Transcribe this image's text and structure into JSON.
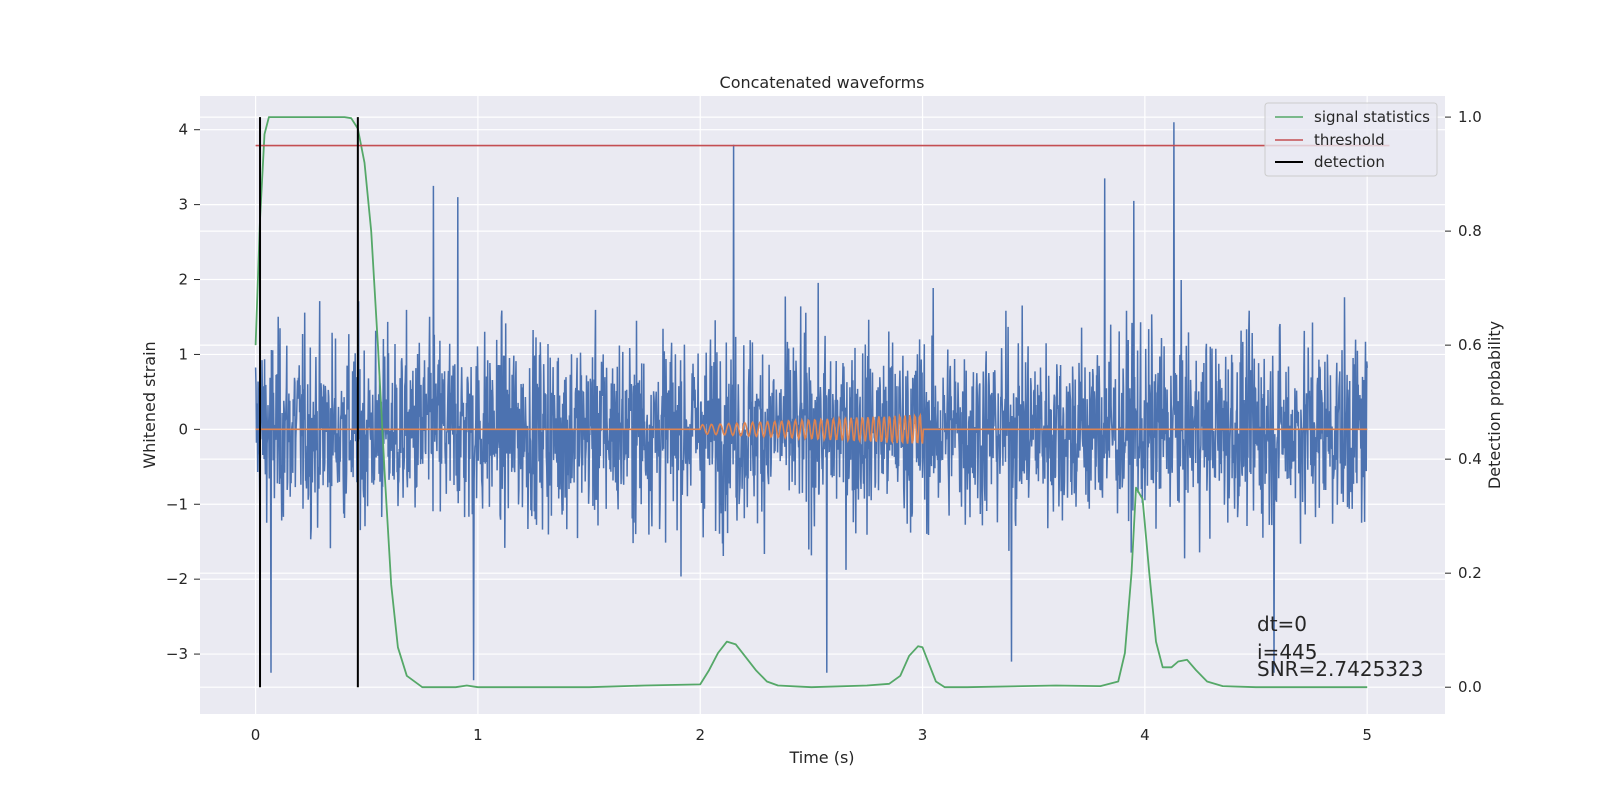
{
  "chart_data": {
    "type": "line",
    "title": "Concatenated waveforms",
    "xlabel": "Time (s)",
    "ylabel_left": "Whitened strain",
    "ylabel_right": "Detection probability",
    "xlim": [
      -0.25,
      5.35
    ],
    "ylim_left": [
      -3.8,
      4.45
    ],
    "ylim_right": [
      -0.047,
      1.037
    ],
    "x_ticks": [
      0,
      1,
      2,
      3,
      4,
      5
    ],
    "x_tick_labels": [
      "0",
      "1",
      "2",
      "3",
      "4",
      "5"
    ],
    "y_left_ticks": [
      -3,
      -2,
      -1,
      0,
      1,
      2,
      3,
      4
    ],
    "y_left_tick_labels": [
      "−3",
      "−2",
      "−1",
      "0",
      "1",
      "2",
      "3",
      "4"
    ],
    "y_right_ticks": [
      0.0,
      0.2,
      0.4,
      0.6,
      0.8,
      1.0
    ],
    "y_right_tick_labels": [
      "0.0",
      "0.2",
      "0.4",
      "0.6",
      "0.8",
      "1.0"
    ],
    "grid": true,
    "legend_position": "top-right",
    "series": [
      {
        "name": "",
        "axis": "left",
        "kind": "noise",
        "color": "#4c72b0",
        "x_range": [
          0,
          5
        ],
        "typical_amplitude": 1.0,
        "extreme_points": [
          {
            "x": 0.8,
            "y": 3.25
          },
          {
            "x": 0.91,
            "y": 3.1
          },
          {
            "x": 2.15,
            "y": 3.8
          },
          {
            "x": 4.13,
            "y": 4.1
          },
          {
            "x": 3.95,
            "y": 3.05
          },
          {
            "x": 3.82,
            "y": 3.35
          },
          {
            "x": 0.98,
            "y": -3.35
          },
          {
            "x": 2.57,
            "y": -3.25
          },
          {
            "x": 4.58,
            "y": -3.25
          },
          {
            "x": 3.4,
            "y": -3.1
          },
          {
            "x": 0.07,
            "y": -3.25
          }
        ]
      },
      {
        "name": "",
        "axis": "left",
        "kind": "chirp",
        "color": "#dd8452",
        "x_range": [
          0,
          5
        ],
        "chirp_range": [
          2.0,
          3.0
        ],
        "amplitude_start": 0.06,
        "amplitude_end": 0.2,
        "cycles": 24
      },
      {
        "name": "signal statistics",
        "axis": "right",
        "color": "#55a868",
        "x": [
          0,
          0.02,
          0.04,
          0.06,
          0.08,
          0.1,
          0.2,
          0.3,
          0.4,
          0.43,
          0.46,
          0.49,
          0.52,
          0.55,
          0.58,
          0.61,
          0.64,
          0.68,
          0.75,
          0.9,
          0.95,
          1.0,
          1.5,
          1.75,
          2.0,
          2.04,
          2.08,
          2.12,
          2.16,
          2.2,
          2.25,
          2.3,
          2.35,
          2.5,
          2.75,
          2.85,
          2.9,
          2.94,
          2.98,
          3.0,
          3.03,
          3.06,
          3.1,
          3.2,
          3.6,
          3.8,
          3.88,
          3.91,
          3.94,
          3.96,
          3.99,
          4.02,
          4.05,
          4.08,
          4.12,
          4.15,
          4.19,
          4.23,
          4.28,
          4.35,
          4.5,
          5.0
        ],
        "y": [
          0.6,
          0.82,
          0.97,
          1.0,
          1.0,
          1.0,
          1.0,
          1.0,
          1.0,
          0.998,
          0.98,
          0.92,
          0.8,
          0.6,
          0.38,
          0.18,
          0.07,
          0.02,
          0.0,
          0.0,
          0.003,
          0.0,
          0.0,
          0.003,
          0.005,
          0.03,
          0.06,
          0.08,
          0.075,
          0.055,
          0.03,
          0.01,
          0.003,
          0.0,
          0.003,
          0.006,
          0.02,
          0.055,
          0.072,
          0.07,
          0.04,
          0.01,
          0.0,
          0.0,
          0.003,
          0.002,
          0.01,
          0.06,
          0.2,
          0.35,
          0.33,
          0.2,
          0.08,
          0.035,
          0.035,
          0.045,
          0.048,
          0.03,
          0.01,
          0.002,
          0.0,
          0.0
        ]
      },
      {
        "name": "threshold",
        "axis": "right",
        "color": "#c44e52",
        "x": [
          0,
          5.1
        ],
        "y": [
          0.95,
          0.95
        ]
      },
      {
        "name": "detection",
        "axis": "right",
        "color": "#000000",
        "kind": "vlines",
        "x": [
          0.02,
          0.46
        ],
        "y_range": [
          0.0,
          1.0
        ]
      }
    ],
    "annotations": [
      "dt=0",
      "i=445",
      "SNR=2.7425323"
    ]
  }
}
